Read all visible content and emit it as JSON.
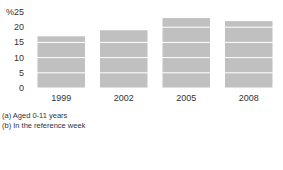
{
  "chart_data": {
    "type": "bar",
    "ylabel": "%",
    "categories": [
      "1999",
      "2002",
      "2005",
      "2008"
    ],
    "values": [
      17,
      19,
      23,
      22
    ],
    "color": "#c0c0c0",
    "ylim": [
      0,
      25
    ],
    "yticks": [
      0,
      5,
      10,
      15,
      20,
      25
    ],
    "grid": true,
    "annotations": [
      "(a) Aged 0-11 years",
      "(b) In the reference week"
    ]
  }
}
